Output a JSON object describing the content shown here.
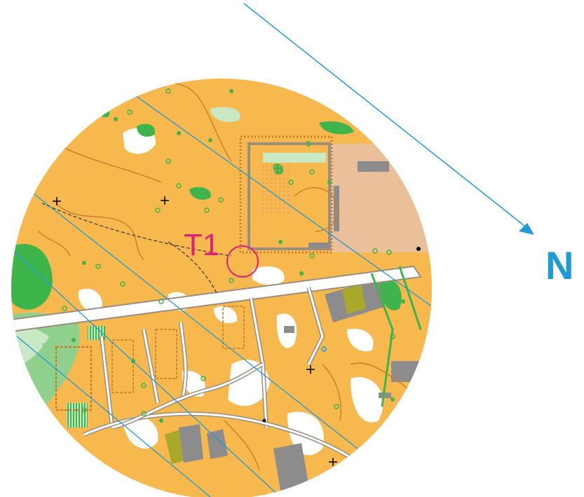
{
  "map": {
    "control_label": "T1",
    "north_label": "N",
    "colors": {
      "open_land": "#f7b84e",
      "rough_open": "#fbd98a",
      "forest": "#ffffff",
      "green": "#3db54a",
      "light_green": "#8fd08c",
      "pale_green": "#c9e8c4",
      "paved": "#e9c09a",
      "building": "#8c8c8c",
      "olive": "#a8a82a",
      "contour": "#c87828",
      "road_edge": "#9b8e80",
      "control": "#e0207a",
      "magnetic_north": "#1e9bd7"
    }
  }
}
